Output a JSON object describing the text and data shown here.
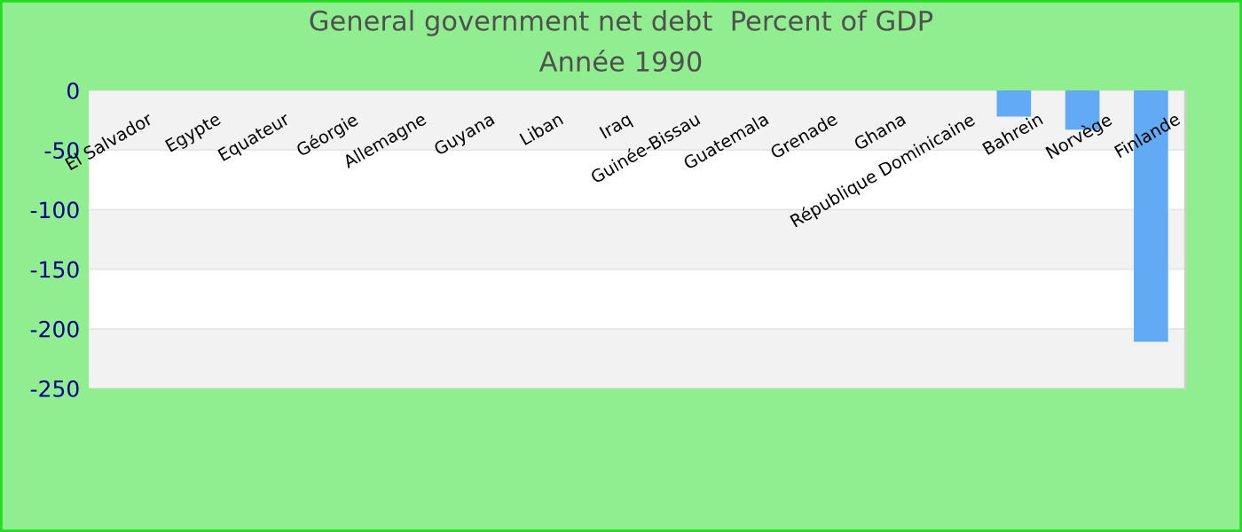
{
  "chart_data": {
    "type": "bar",
    "title": "General government net debt  Percent of GDP",
    "subtitle": "Année 1990",
    "categories": [
      "El Salvador",
      "Egypte",
      "Equateur",
      "Géorgie",
      "Allemagne",
      "Guyana",
      "Liban",
      "Iraq",
      "Guinée-Bissau",
      "Guatemala",
      "Grenade",
      "Ghana",
      "République Dominicaine",
      "Bahrein",
      "Norvège",
      "Finlande"
    ],
    "values": [
      null,
      null,
      null,
      null,
      null,
      null,
      null,
      null,
      null,
      null,
      null,
      null,
      null,
      -22,
      -33,
      -211
    ],
    "color": "#63aaf5",
    "ylim": [
      -250,
      0
    ],
    "yticks": [
      0,
      -50,
      -100,
      -150,
      -200,
      -250
    ],
    "grid": "y",
    "legend": false
  }
}
